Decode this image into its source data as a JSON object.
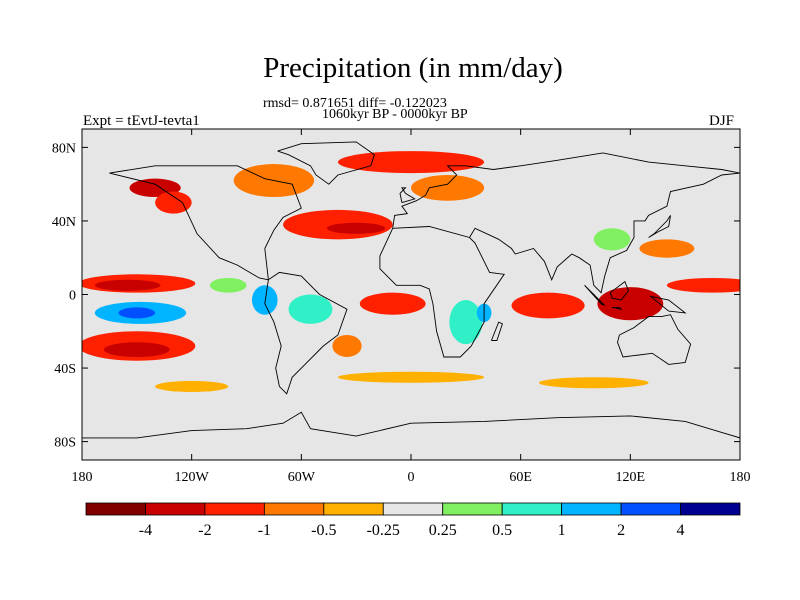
{
  "title": "Precipitation (in mm/day)",
  "stats_line": "rmsd= 0.871651 diff= -0.122023",
  "period_line": "1060kyr BP - 0000kyr BP",
  "left_label": "Expt = tEvtJ-tevta1",
  "right_label": "DJF",
  "lat_ticks": [
    {
      "value": 80,
      "label": "80N"
    },
    {
      "value": 40,
      "label": "40N"
    },
    {
      "value": 0,
      "label": "0"
    },
    {
      "value": -40,
      "label": "40S"
    },
    {
      "value": -80,
      "label": "80S"
    }
  ],
  "lon_ticks": [
    {
      "value": -180,
      "label": "180"
    },
    {
      "value": -120,
      "label": "120W"
    },
    {
      "value": -60,
      "label": "60W"
    },
    {
      "value": 0,
      "label": "0"
    },
    {
      "value": 60,
      "label": "60E"
    },
    {
      "value": 120,
      "label": "120E"
    },
    {
      "value": 180,
      "label": "180"
    }
  ],
  "colorbar": {
    "colors": [
      "#800000",
      "#c80000",
      "#ff2000",
      "#ff7800",
      "#ffb000",
      "#e6e6e6",
      "#80f060",
      "#30f0c8",
      "#00b4ff",
      "#0050ff",
      "#000090"
    ],
    "labels": [
      "-4",
      "-2",
      "-1",
      "-0.5",
      "-0.25",
      "0.25",
      "0.5",
      "1",
      "2",
      "4"
    ]
  },
  "map_data": {
    "lon_range": [
      -180,
      180
    ],
    "lat_range": [
      -90,
      90
    ],
    "background_color": "#e6e6e6",
    "anomalies": [
      {
        "lon": -150,
        "lat": 6,
        "rx": 32,
        "ry": 5,
        "level": -1
      },
      {
        "lon": -155,
        "lat": 5,
        "rx": 18,
        "ry": 3,
        "level": -2
      },
      {
        "lon": -148,
        "lat": -10,
        "rx": 25,
        "ry": 6,
        "level": 2
      },
      {
        "lon": -150,
        "lat": -10,
        "rx": 10,
        "ry": 3,
        "level": 4
      },
      {
        "lon": -150,
        "lat": -28,
        "rx": 32,
        "ry": 8,
        "level": -1
      },
      {
        "lon": -150,
        "lat": -30,
        "rx": 18,
        "ry": 4,
        "level": -2
      },
      {
        "lon": -140,
        "lat": 58,
        "rx": 14,
        "ry": 5,
        "level": -2
      },
      {
        "lon": -130,
        "lat": 50,
        "rx": 10,
        "ry": 6,
        "level": -1
      },
      {
        "lon": -75,
        "lat": 62,
        "rx": 22,
        "ry": 9,
        "level": -0.5
      },
      {
        "lon": -40,
        "lat": 38,
        "rx": 30,
        "ry": 8,
        "level": -1
      },
      {
        "lon": -30,
        "lat": 36,
        "rx": 16,
        "ry": 3,
        "level": -2
      },
      {
        "lon": 0,
        "lat": 72,
        "rx": 40,
        "ry": 6,
        "level": -1
      },
      {
        "lon": 20,
        "lat": 58,
        "rx": 20,
        "ry": 7,
        "level": -0.5
      },
      {
        "lon": -100,
        "lat": 5,
        "rx": 10,
        "ry": 4,
        "level": 0.5
      },
      {
        "lon": -80,
        "lat": -3,
        "rx": 7,
        "ry": 8,
        "level": 2
      },
      {
        "lon": -55,
        "lat": -8,
        "rx": 12,
        "ry": 8,
        "level": 1
      },
      {
        "lon": -35,
        "lat": -28,
        "rx": 8,
        "ry": 6,
        "level": -0.5
      },
      {
        "lon": -10,
        "lat": -5,
        "rx": 18,
        "ry": 6,
        "level": -1
      },
      {
        "lon": 30,
        "lat": -15,
        "rx": 9,
        "ry": 12,
        "level": 1
      },
      {
        "lon": 40,
        "lat": -10,
        "rx": 4,
        "ry": 5,
        "level": 2
      },
      {
        "lon": 75,
        "lat": -6,
        "rx": 20,
        "ry": 7,
        "level": -1
      },
      {
        "lon": 120,
        "lat": -5,
        "rx": 18,
        "ry": 9,
        "level": -2
      },
      {
        "lon": 165,
        "lat": 5,
        "rx": 25,
        "ry": 4,
        "level": -1
      },
      {
        "lon": 140,
        "lat": 25,
        "rx": 15,
        "ry": 5,
        "level": -0.5
      },
      {
        "lon": 110,
        "lat": 30,
        "rx": 10,
        "ry": 6,
        "level": 0.5
      },
      {
        "lon": 0,
        "lat": -45,
        "rx": 40,
        "ry": 3,
        "level": -0.25
      },
      {
        "lon": 100,
        "lat": -48,
        "rx": 30,
        "ry": 3,
        "level": -0.25
      },
      {
        "lon": -120,
        "lat": -50,
        "rx": 20,
        "ry": 3,
        "level": -0.25
      }
    ]
  }
}
